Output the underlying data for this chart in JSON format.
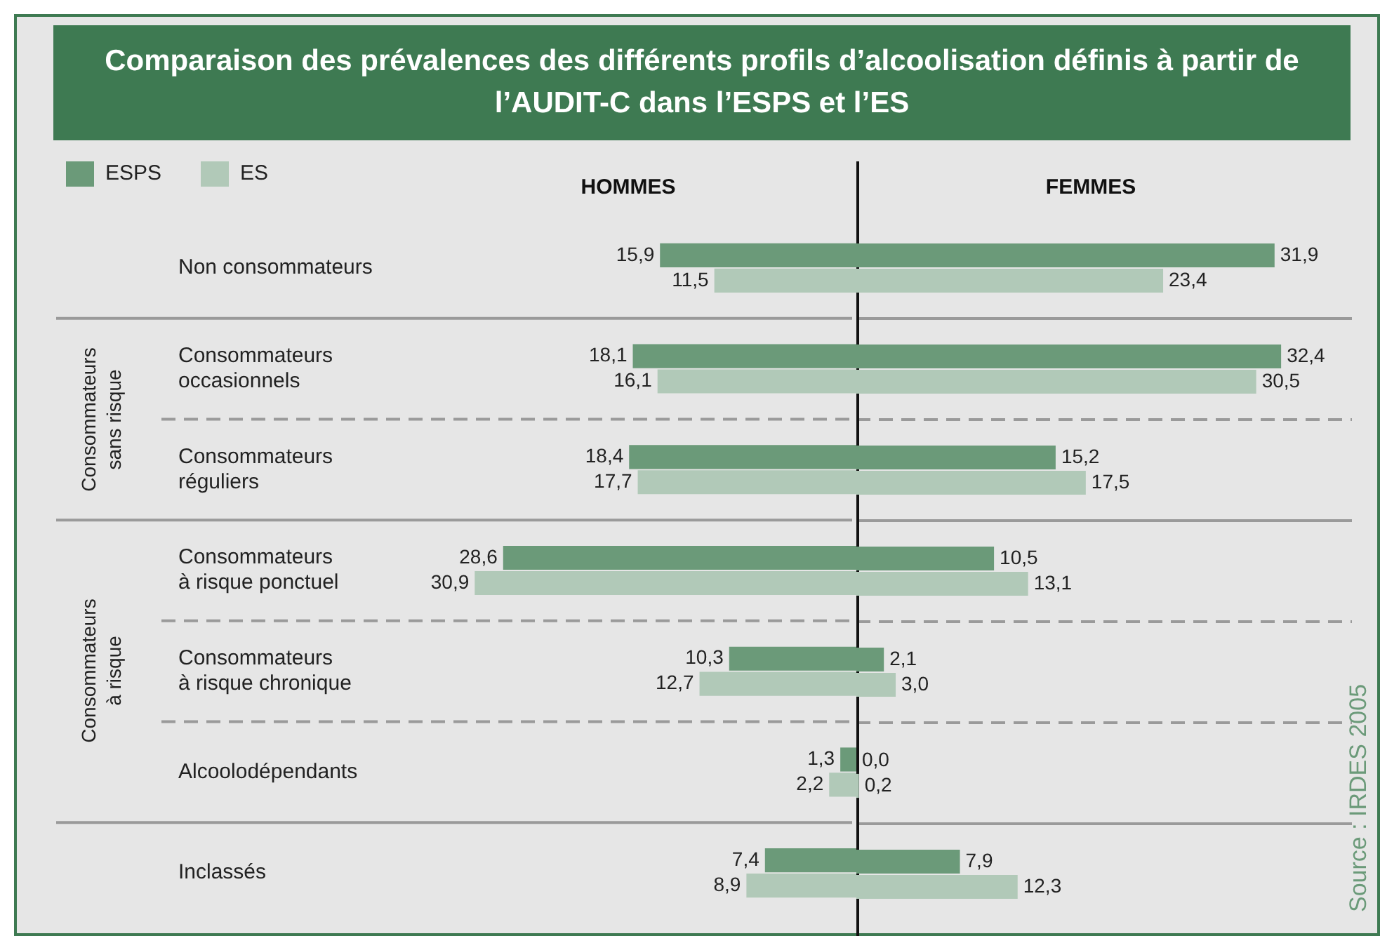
{
  "chart_data": [
    {
      "type": "bar",
      "orientation": "horizontal",
      "title": "Comparaison des prévalences des différents profils d’alcoolisation définis à partir de l’AUDIT-C dans l’ESPS et l’ES",
      "subtitle": "HOMMES",
      "categories": [
        "Non consommateurs",
        "Consommateurs occasionnels",
        "Consommateurs réguliers",
        "Consommateurs à risque ponctuel",
        "Consommateurs à risque chronique",
        "Alcoolodépendants",
        "Inclassés"
      ],
      "tick_labels": "y",
      "legend": "top left",
      "annotations": [
        "Consommateurs sans risque",
        "Consommateurs à risque",
        "Source : IRDES 2005"
      ],
      "series": [
        {
          "name": "ESPS",
          "color": "#6b9a79",
          "values": [
            15.9,
            18.1,
            18.4,
            28.6,
            10.3,
            1.3,
            7.4
          ],
          "value_labels": [
            "15,9",
            "18,1",
            "18,4",
            "28,6",
            "10,3",
            "1,3",
            "7,4"
          ]
        },
        {
          "name": "ES",
          "color": "#b1c9b8",
          "values": [
            11.5,
            16.1,
            17.7,
            30.9,
            12.7,
            2.2,
            8.9
          ],
          "value_labels": [
            "11,5",
            "16,1",
            "17,7",
            "30,9",
            "12,7",
            "2,2",
            "8,9"
          ]
        }
      ]
    },
    {
      "type": "bar",
      "orientation": "horizontal",
      "title": "FEMMES",
      "categories": [
        null,
        null,
        null,
        null,
        null,
        null,
        null
      ],
      "tick_labels": false,
      "series": [
        {
          "color": "#6b9a79",
          "values": [
            31.9,
            32.4,
            15.2,
            10.5,
            2.1,
            0.0,
            7.9
          ],
          "value_labels": [
            "31,9",
            "32,4",
            "15,2",
            "10,5",
            "2,1",
            "0,0",
            "7,9"
          ]
        },
        {
          "color": "#b1c9b8",
          "values": [
            23.4,
            30.5,
            17.5,
            13.1,
            3.0,
            0.2,
            12.3
          ],
          "value_labels": [
            "23,4",
            "30,5",
            "17,5",
            "13,1",
            "3,0",
            "0,2",
            "12,3"
          ]
        }
      ]
    }
  ]
}
